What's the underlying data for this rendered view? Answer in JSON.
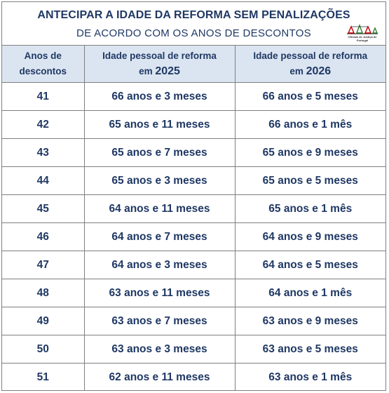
{
  "header": {
    "title": "ANTECIPAR A IDADE DA REFORMA SEM PENALIZAÇÕES",
    "subtitle": "DE ACORDO COM OS ANOS DE DESCONTOS",
    "logo_text": "Oficiais de Justiça de Portugal"
  },
  "columns": {
    "years_line1": "Anos de",
    "years_line2": "descontos",
    "age_label": "Idade pessoal de reforma",
    "year_a_prefix": "em",
    "year_a": "2025",
    "year_b_prefix": "em",
    "year_b": "2026"
  },
  "rows": [
    {
      "years": "41",
      "age_2025": "66 anos e 3 meses",
      "age_2026": "66 anos e 5 meses"
    },
    {
      "years": "42",
      "age_2025": "65 anos e 11 meses",
      "age_2026": "66 anos e 1 mês"
    },
    {
      "years": "43",
      "age_2025": "65 anos e 7 meses",
      "age_2026": "65 anos e 9 meses"
    },
    {
      "years": "44",
      "age_2025": "65 anos e 3 meses",
      "age_2026": "65 anos e 5 meses"
    },
    {
      "years": "45",
      "age_2025": "64 anos e 11 meses",
      "age_2026": "65 anos e 1 mês"
    },
    {
      "years": "46",
      "age_2025": "64 anos e 7 meses",
      "age_2026": "64 anos e 9 meses"
    },
    {
      "years": "47",
      "age_2025": "64 anos e 3 meses",
      "age_2026": "64 anos e 5 meses"
    },
    {
      "years": "48",
      "age_2025": "63 anos e 11 meses",
      "age_2026": "64 anos e 1 mês"
    },
    {
      "years": "49",
      "age_2025": "63 anos e 7 meses",
      "age_2026": "63 anos e 9 meses"
    },
    {
      "years": "50",
      "age_2025": "63 anos e 3 meses",
      "age_2026": "63 anos e 5 meses"
    },
    {
      "years": "51",
      "age_2025": "62 anos e 11 meses",
      "age_2026": "63 anos e 1 mês"
    }
  ]
}
